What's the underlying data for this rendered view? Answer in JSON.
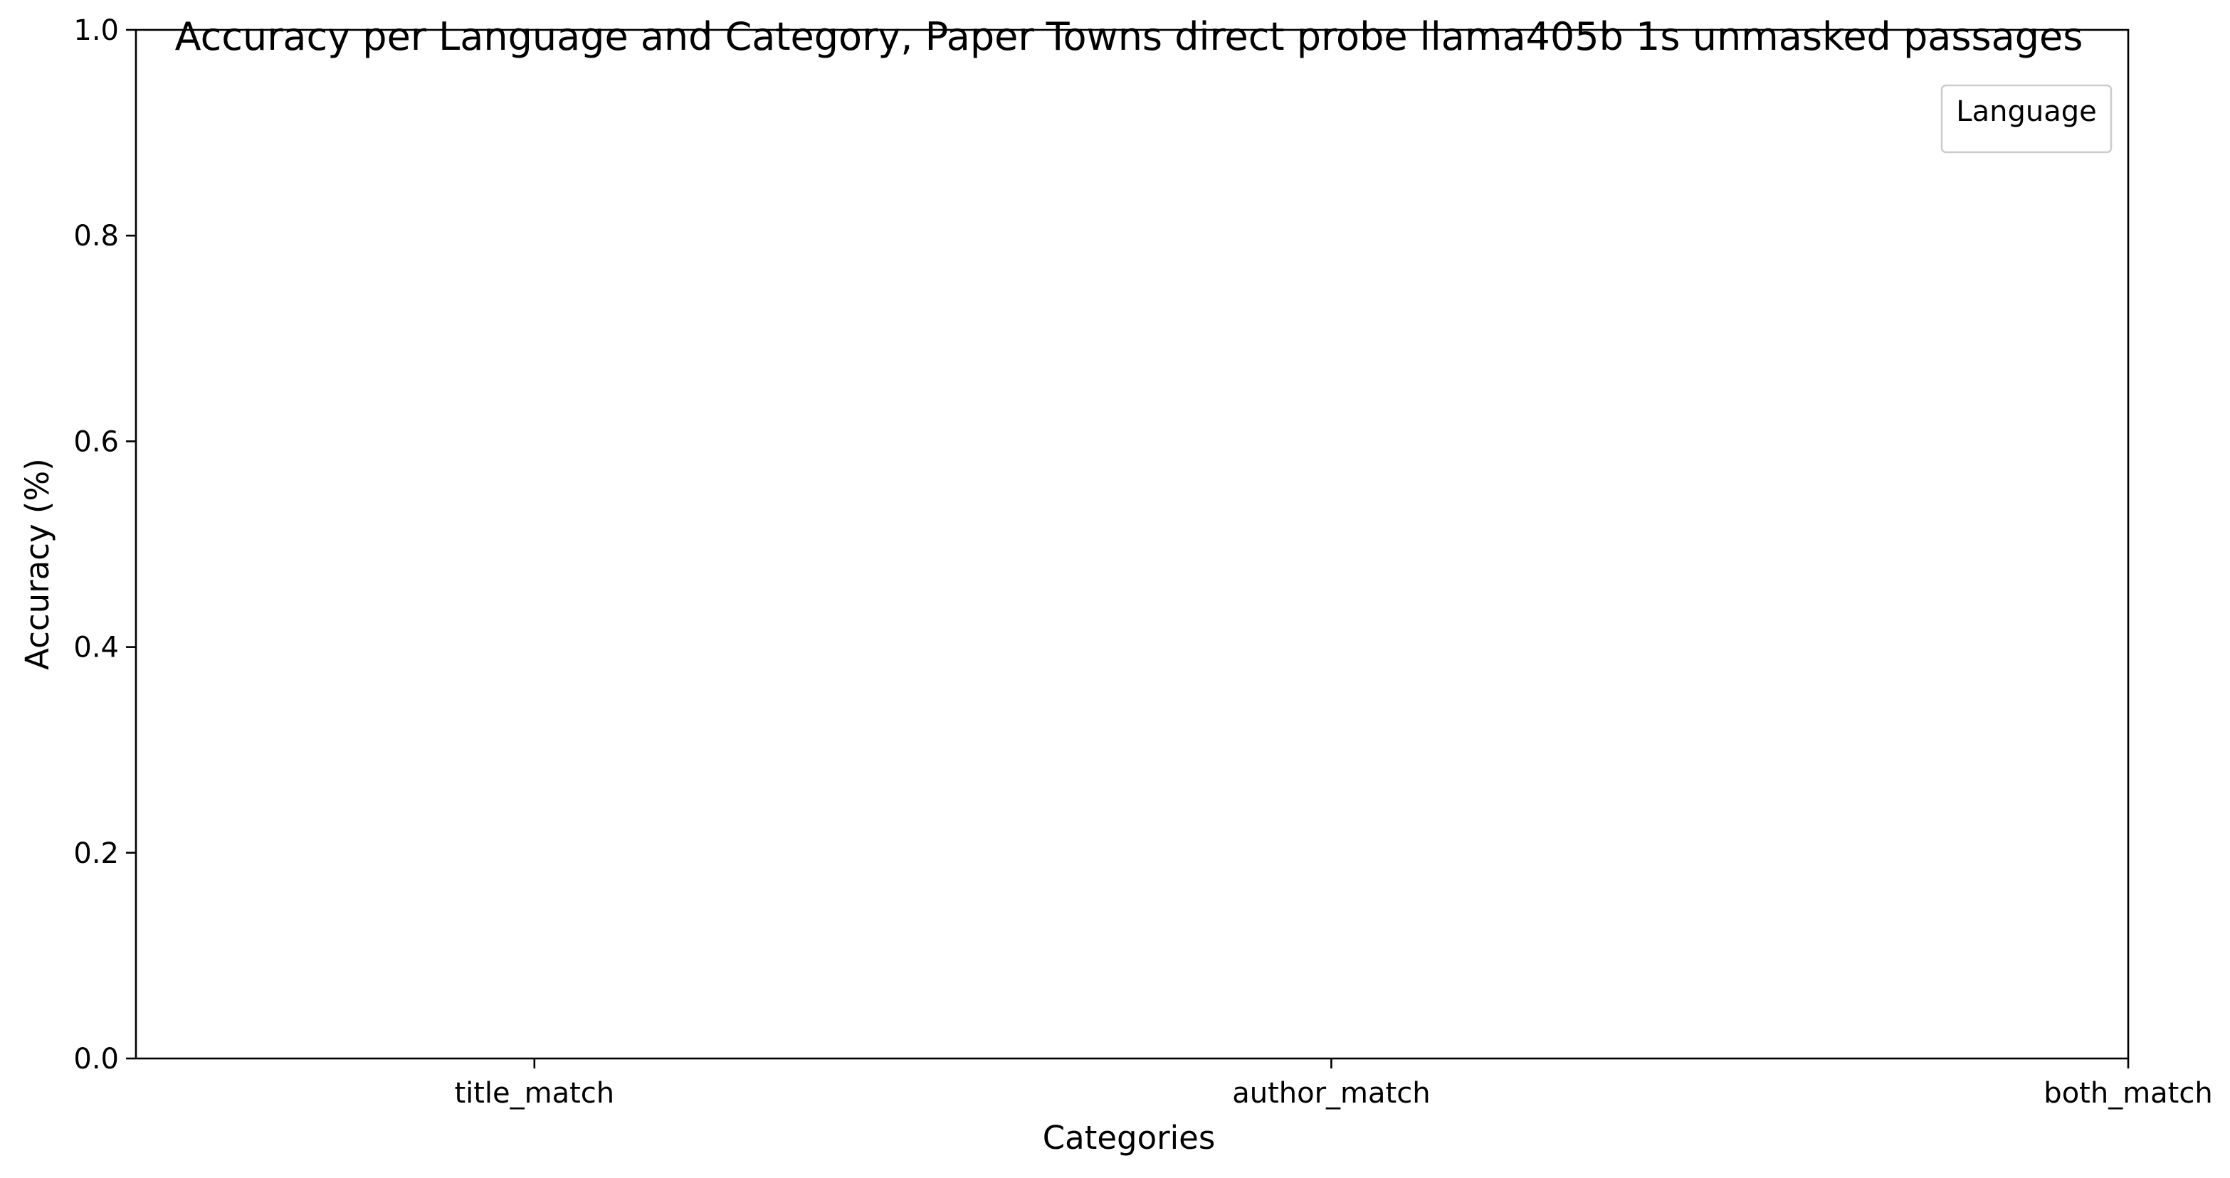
{
  "chart_data": {
    "type": "bar",
    "title": "Accuracy per Language and Category, Paper Towns direct probe llama405b 1s unmasked passages",
    "xlabel": "Categories",
    "ylabel": "Accuracy (%)",
    "categories": [
      "title_match",
      "author_match",
      "both_match"
    ],
    "series": [],
    "ylim": [
      0,
      1.0
    ],
    "yticks": [
      "0.0",
      "0.2",
      "0.4",
      "0.6",
      "0.8",
      "1.0"
    ],
    "grid": false,
    "legend": {
      "title": "Language",
      "placement": "top-right",
      "entries": []
    }
  }
}
